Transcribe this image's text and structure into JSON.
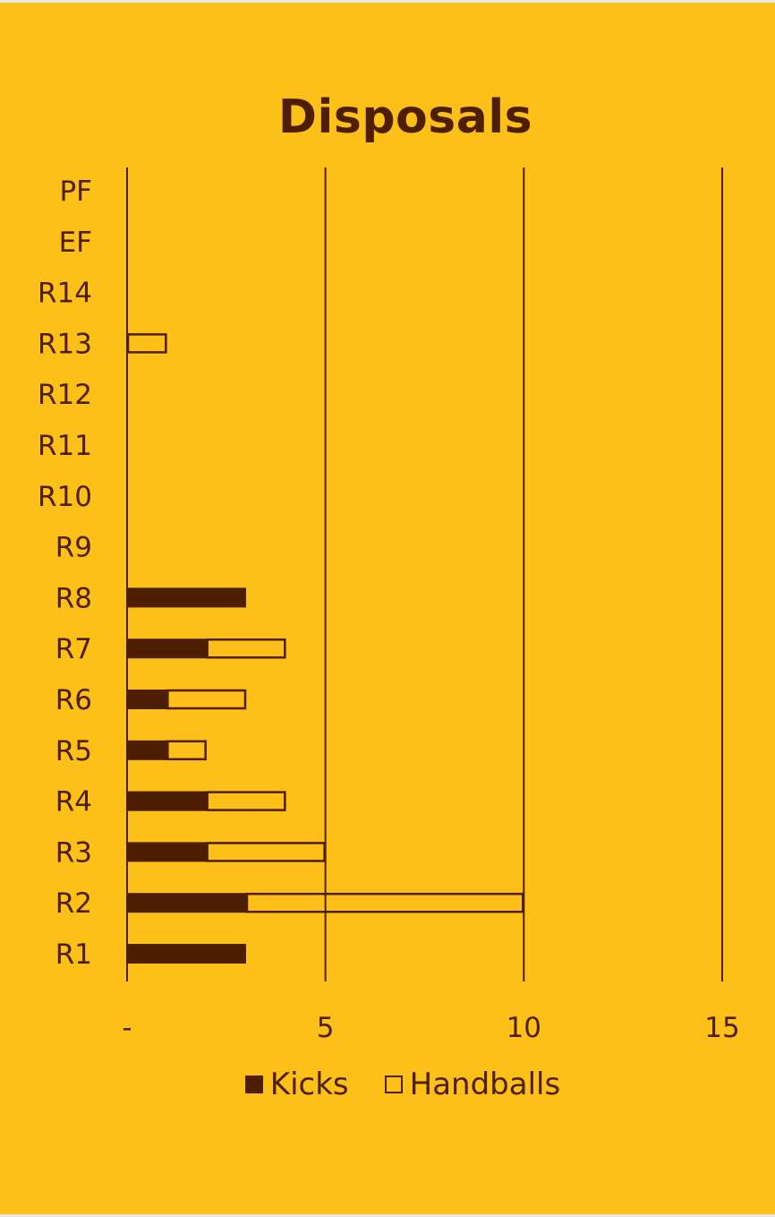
{
  "chart_data": {
    "type": "bar",
    "orientation": "horizontal",
    "stacked": true,
    "title": "Disposals",
    "categories": [
      "R1",
      "R2",
      "R3",
      "R4",
      "R5",
      "R6",
      "R7",
      "R8",
      "R9",
      "R10",
      "R11",
      "R12",
      "R13",
      "R14",
      "EF",
      "PF"
    ],
    "series": [
      {
        "name": "Kicks",
        "values": [
          3,
          3,
          2,
          2,
          1,
          1,
          2,
          3,
          0,
          0,
          0,
          0,
          0,
          0,
          0,
          0
        ],
        "color": "#4e1e00",
        "style": "filled"
      },
      {
        "name": "Handballs",
        "values": [
          0,
          7,
          3,
          2,
          1,
          2,
          2,
          0,
          0,
          0,
          0,
          0,
          1,
          0,
          0,
          0
        ],
        "color": "#4e1e00",
        "style": "outline"
      }
    ],
    "xticks": [
      "-",
      "5",
      "10",
      "15"
    ],
    "xlim": [
      0,
      15
    ],
    "grid": true,
    "legend_position": "bottom",
    "background": "#fcc019"
  }
}
